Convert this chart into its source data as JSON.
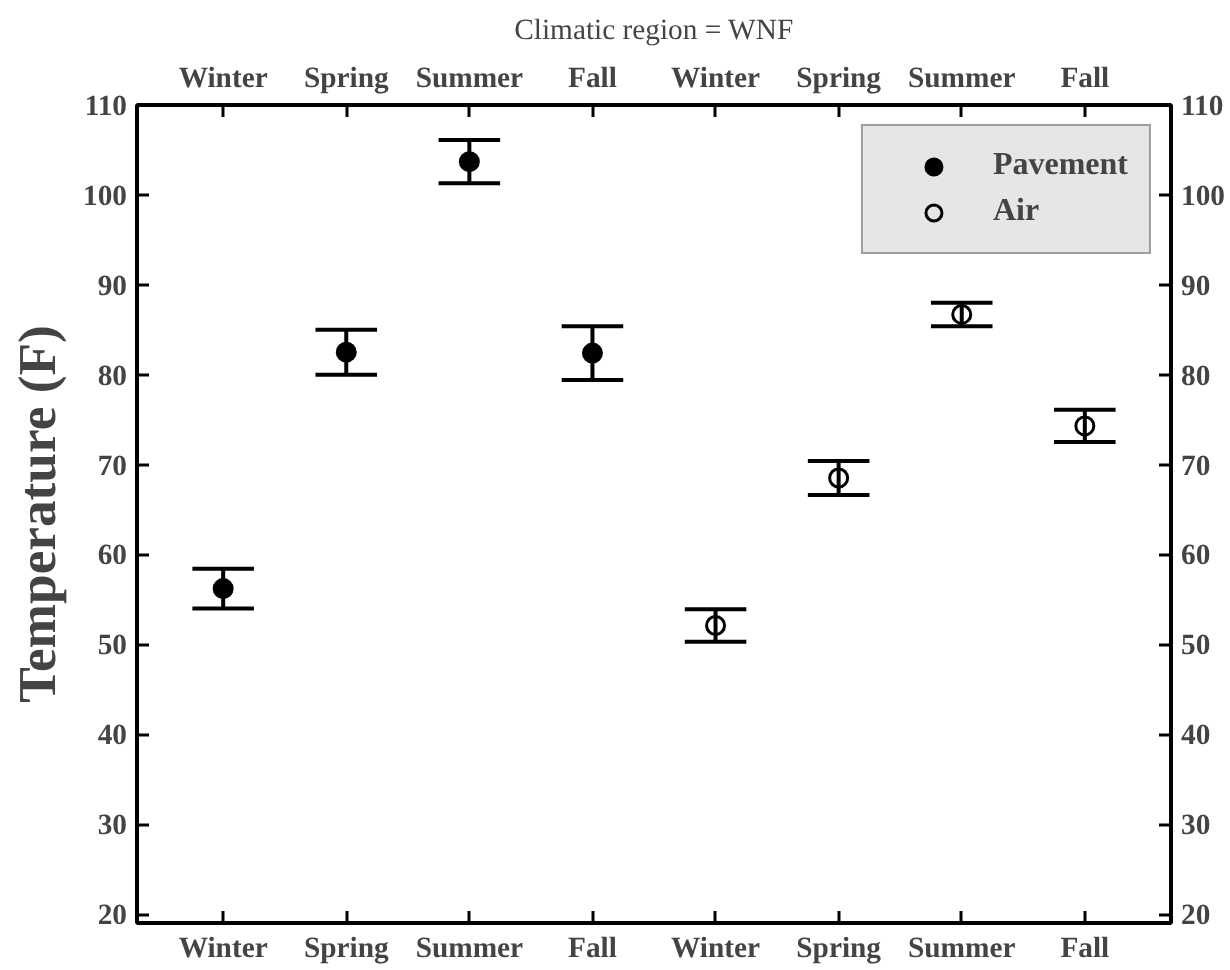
{
  "chart_data": {
    "type": "scatter",
    "title": "Climatic region = WNF",
    "ylabel": "Temperature (F)",
    "categories": [
      "Winter",
      "Spring",
      "Summer",
      "Fall",
      "Winter",
      "Spring",
      "Summer",
      "Fall"
    ],
    "series": [
      {
        "name": "Pavement",
        "color": "#000000",
        "values": [
          56.2,
          82.5,
          103.7,
          82.4,
          null,
          null,
          null,
          null
        ],
        "errors": [
          2.2,
          2.5,
          2.4,
          3.0,
          null,
          null,
          null,
          null
        ]
      },
      {
        "name": "Air",
        "color": "#000000",
        "values": [
          null,
          null,
          null,
          null,
          52.1,
          68.5,
          86.7,
          74.3
        ],
        "errors": [
          null,
          null,
          null,
          null,
          1.8,
          1.9,
          1.3,
          1.8
        ]
      }
    ],
    "ylim": [
      19,
      110
    ],
    "yticks": [
      20,
      30,
      40,
      50,
      60,
      70,
      80,
      90,
      100,
      110
    ],
    "y2lim": [
      19,
      110
    ],
    "y2ticks": [
      20,
      30,
      40,
      50,
      60,
      70,
      80,
      90,
      100,
      110
    ],
    "marker": "circle",
    "grid": false,
    "legend": "top right"
  }
}
